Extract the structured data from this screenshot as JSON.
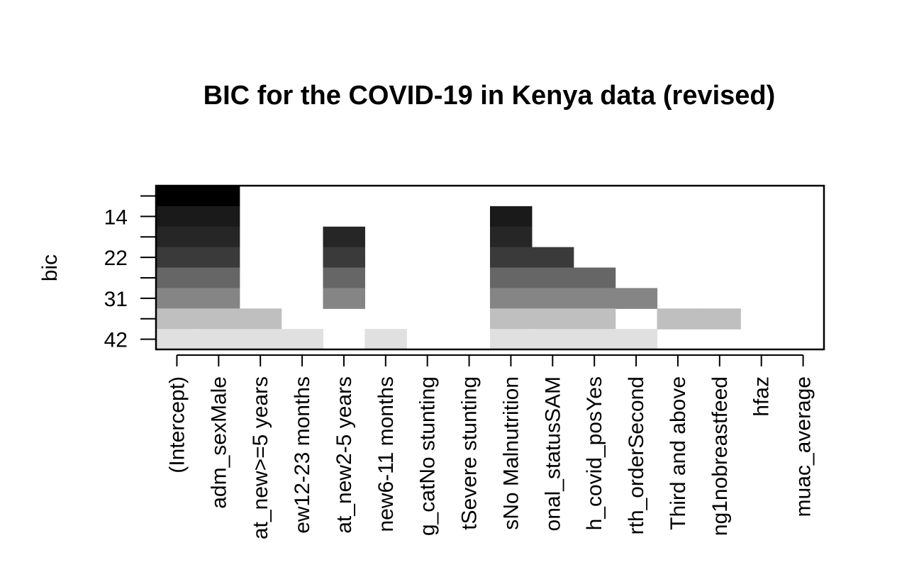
{
  "chart_data": {
    "type": "heatmap",
    "title": "BIC for the COVID-19 in Kenya data (revised)",
    "ylabel": "bic",
    "xlabel": "",
    "x_tick_labels": [
      "(Intercept)",
      "adm_sexMale",
      "at_new>=5 years",
      "ew12-23 months",
      "at_new2-5 years",
      "new6-11 months",
      "g_catNo stunting",
      "tSevere stunting",
      "sNo Malnutrition",
      "onal_statusSAM",
      "h_covid_posYes",
      "rth_orderSecond",
      "Third and above",
      "ng1nobreastfeed",
      "hfaz",
      "muac_average"
    ],
    "y_tick_labels": [
      "14",
      "22",
      "31",
      "42"
    ],
    "y_label_rows": [
      1,
      3,
      5,
      7
    ],
    "row_colors": [
      "#000000",
      "#1a1a1a",
      "#262626",
      "#3a3a3a",
      "#666666",
      "#858585",
      "#bfbfbf",
      "#e0e0e0"
    ],
    "matrix": [
      [
        1,
        1,
        0,
        0,
        0,
        0,
        0,
        0,
        0,
        0,
        0,
        0,
        0,
        0,
        0,
        0
      ],
      [
        1,
        1,
        0,
        0,
        0,
        0,
        0,
        0,
        1,
        0,
        0,
        0,
        0,
        0,
        0,
        0
      ],
      [
        1,
        1,
        0,
        0,
        1,
        0,
        0,
        0,
        1,
        0,
        0,
        0,
        0,
        0,
        0,
        0
      ],
      [
        1,
        1,
        0,
        0,
        1,
        0,
        0,
        0,
        1,
        1,
        0,
        0,
        0,
        0,
        0,
        0
      ],
      [
        1,
        1,
        0,
        0,
        1,
        0,
        0,
        0,
        1,
        1,
        1,
        0,
        0,
        0,
        0,
        0
      ],
      [
        1,
        1,
        0,
        0,
        1,
        0,
        0,
        0,
        1,
        1,
        1,
        1,
        0,
        0,
        0,
        0
      ],
      [
        1,
        1,
        1,
        0,
        0,
        0,
        0,
        0,
        1,
        1,
        1,
        0,
        1,
        1,
        0,
        0
      ],
      [
        1,
        1,
        1,
        1,
        0,
        1,
        0,
        0,
        1,
        1,
        1,
        1,
        0,
        0,
        0,
        0
      ]
    ]
  }
}
